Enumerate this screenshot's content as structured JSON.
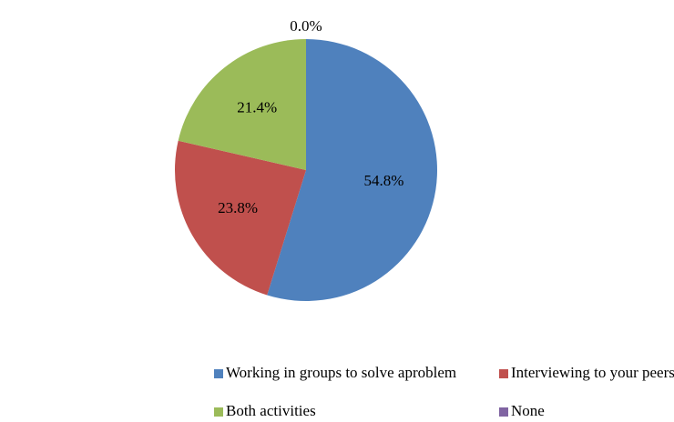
{
  "chart_data": {
    "type": "pie",
    "categories": [
      "Working in groups to solve aproblem",
      "Interviewing to your peers",
      "Both activities",
      "None"
    ],
    "values": [
      54.8,
      23.8,
      21.4,
      0.0
    ],
    "value_labels": [
      "54.8%",
      "23.8%",
      "21.4%",
      "0.0%"
    ],
    "colors": [
      "#4f81bd",
      "#c0504d",
      "#9bbb59",
      "#8064a2"
    ],
    "legend": "bottom"
  }
}
